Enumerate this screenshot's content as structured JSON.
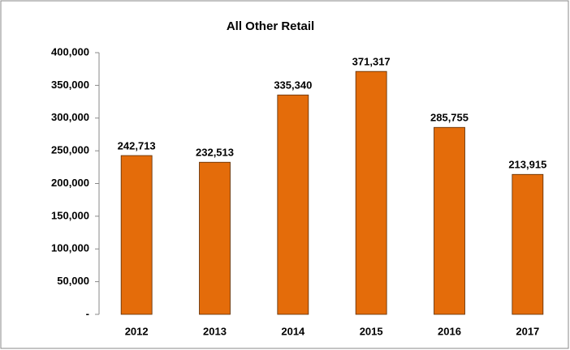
{
  "chart_data": {
    "type": "bar",
    "title": "All Other Retail",
    "categories": [
      "2012",
      "2013",
      "2014",
      "2015",
      "2016",
      "2017"
    ],
    "values": [
      242713,
      232513,
      335340,
      371317,
      285755,
      213915
    ],
    "value_labels": [
      "242,713",
      "232,513",
      "335,340",
      "371,317",
      "285,755",
      "213,915"
    ],
    "color": "#e46c0a",
    "ylim": [
      0,
      400000
    ],
    "yticks": [
      {
        "value": 0,
        "label": "-"
      },
      {
        "value": 50000,
        "label": "50,000"
      },
      {
        "value": 100000,
        "label": "100,000"
      },
      {
        "value": 150000,
        "label": "150,000"
      },
      {
        "value": 200000,
        "label": "200,000"
      },
      {
        "value": 250000,
        "label": "250,000"
      },
      {
        "value": 300000,
        "label": "300,000"
      },
      {
        "value": 350000,
        "label": "350,000"
      },
      {
        "value": 400000,
        "label": "400,000"
      }
    ],
    "grid": false
  }
}
